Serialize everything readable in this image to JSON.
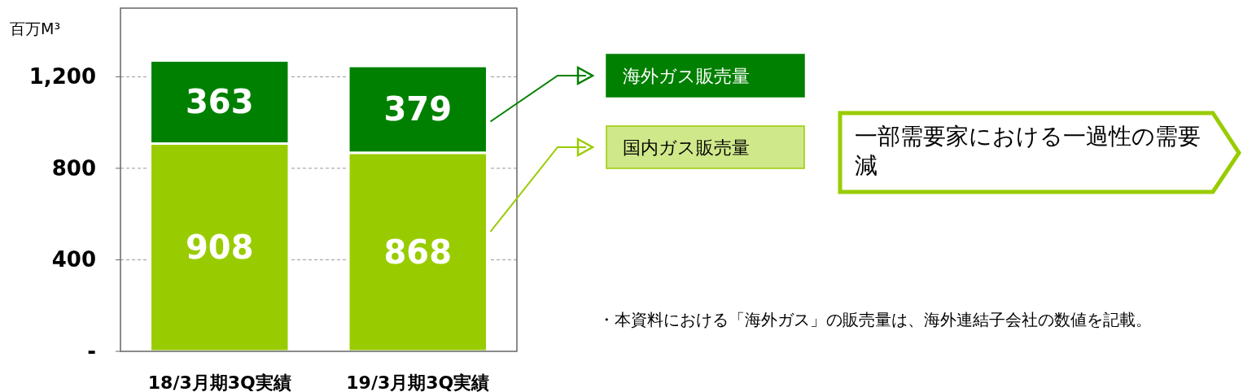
{
  "chart_data": {
    "type": "bar",
    "stacked": true,
    "ylabel": "百万M³",
    "categories": [
      "18/3月期3Q実績",
      "19/3月期3Q実績"
    ],
    "series": [
      {
        "name": "国内ガス販売量",
        "color": "#99cc00",
        "values": [
          908,
          868
        ]
      },
      {
        "name": "海外ガス販売量",
        "color": "#008000",
        "values": [
          363,
          379
        ]
      }
    ],
    "ylim": [
      0,
      1500
    ],
    "yticks": [
      {
        "value": 0,
        "label": "-"
      },
      400,
      800,
      {
        "value": 1200,
        "label": "1,200"
      }
    ],
    "grid": "y",
    "legend": "right",
    "data_labels": true,
    "annotations": [
      "一部需要家における一過性の需要減",
      "・本資料における「海外ガス」の販売量は、海外連結子会社の数値を記載。"
    ]
  }
}
